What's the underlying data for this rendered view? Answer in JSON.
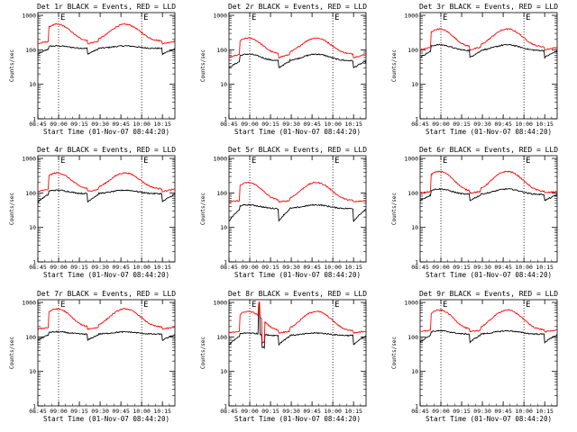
{
  "figure": {
    "background": "#ffffff",
    "axis_color": "#000000"
  },
  "chart_data": [
    {
      "type": "line",
      "title": "Det 1r BLACK = Events, RED = LLD",
      "xlabel": "Start Time (01-Nov-07 08:44:20)",
      "ylabel": "Counts/sec",
      "yscale": "log",
      "ylim": [
        1,
        1200
      ],
      "xlim": [
        "08:45",
        "10:24"
      ],
      "x_tick_labels": [
        "08:45",
        "09:00",
        "09:15",
        "09:30",
        "09:45",
        "10:00",
        "10:15"
      ],
      "y_tick_labels": [
        "1",
        "10",
        "100",
        "1000"
      ],
      "marker_lines": [
        "09:00",
        "10:00"
      ],
      "marker_label": "E",
      "series": [
        {
          "name": "Events",
          "color": "#000000",
          "peak": 130,
          "base": 110,
          "drop": 75
        },
        {
          "name": "LLD",
          "color": "#ff0000",
          "peak": 550,
          "base": 180,
          "drop": 150
        }
      ]
    },
    {
      "type": "line",
      "title": "Det 2r BLACK = Events, RED = LLD",
      "xlabel": "Start Time (01-Nov-07 08:44:20)",
      "ylabel": "Counts/sec",
      "yscale": "log",
      "ylim": [
        1,
        1200
      ],
      "xlim": [
        "08:45",
        "10:24"
      ],
      "x_tick_labels": [
        "08:45",
        "09:00",
        "09:15",
        "09:30",
        "09:45",
        "10:00",
        "10:15"
      ],
      "y_tick_labels": [
        "1",
        "10",
        "100",
        "1000"
      ],
      "marker_lines": [
        "09:00",
        "10:00"
      ],
      "marker_label": "E",
      "series": [
        {
          "name": "Events",
          "color": "#000000",
          "peak": 75,
          "base": 48,
          "drop": 30
        },
        {
          "name": "LLD",
          "color": "#ff0000",
          "peak": 220,
          "base": 75,
          "drop": 60
        }
      ]
    },
    {
      "type": "line",
      "title": "Det 3r BLACK = Events, RED = LLD",
      "xlabel": "Start Time (01-Nov-07 08:44:20)",
      "ylabel": "Counts/sec",
      "yscale": "log",
      "ylim": [
        1,
        1200
      ],
      "xlim": [
        "08:45",
        "10:24"
      ],
      "x_tick_labels": [
        "08:45",
        "09:00",
        "09:15",
        "09:30",
        "09:45",
        "10:00",
        "10:15"
      ],
      "y_tick_labels": [
        "1",
        "10",
        "100",
        "1000"
      ],
      "marker_lines": [
        "09:00",
        "10:00"
      ],
      "marker_label": "E",
      "series": [
        {
          "name": "Events",
          "color": "#000000",
          "peak": 140,
          "base": 95,
          "drop": 60
        },
        {
          "name": "LLD",
          "color": "#ff0000",
          "peak": 400,
          "base": 120,
          "drop": 100
        }
      ]
    },
    {
      "type": "line",
      "title": "Det 4r BLACK = Events, RED = LLD",
      "xlabel": "Start Time (01-Nov-07 08:44:20)",
      "ylabel": "Counts/sec",
      "yscale": "log",
      "ylim": [
        1,
        1200
      ],
      "xlim": [
        "08:45",
        "10:24"
      ],
      "x_tick_labels": [
        "08:45",
        "09:00",
        "09:15",
        "09:30",
        "09:45",
        "10:00",
        "10:15"
      ],
      "y_tick_labels": [
        "1",
        "10",
        "100",
        "1000"
      ],
      "marker_lines": [
        "09:00",
        "10:00"
      ],
      "marker_label": "E",
      "series": [
        {
          "name": "Events",
          "color": "#000000",
          "peak": 120,
          "base": 95,
          "drop": 55
        },
        {
          "name": "LLD",
          "color": "#ff0000",
          "peak": 380,
          "base": 130,
          "drop": 110
        }
      ]
    },
    {
      "type": "line",
      "title": "Det 5r BLACK = Events, RED = LLD",
      "xlabel": "Start Time (01-Nov-07 08:44:20)",
      "ylabel": "Counts/sec",
      "yscale": "log",
      "ylim": [
        1,
        1200
      ],
      "xlim": [
        "08:45",
        "10:24"
      ],
      "x_tick_labels": [
        "08:45",
        "09:00",
        "09:15",
        "09:30",
        "09:45",
        "10:00",
        "10:15"
      ],
      "y_tick_labels": [
        "1",
        "10",
        "100",
        "1000"
      ],
      "marker_lines": [
        "09:00",
        "10:00"
      ],
      "marker_label": "E",
      "series": [
        {
          "name": "Events",
          "color": "#000000",
          "peak": 45,
          "base": 35,
          "drop": 15
        },
        {
          "name": "LLD",
          "color": "#ff0000",
          "peak": 200,
          "base": 60,
          "drop": 55
        }
      ]
    },
    {
      "type": "line",
      "title": "Det 6r BLACK = Events, RED = LLD",
      "xlabel": "Start Time (01-Nov-07 08:44:20)",
      "ylabel": "Counts/sec",
      "yscale": "log",
      "ylim": [
        1,
        1200
      ],
      "xlim": [
        "08:45",
        "10:24"
      ],
      "x_tick_labels": [
        "08:45",
        "09:00",
        "09:15",
        "09:30",
        "09:45",
        "10:00",
        "10:15"
      ],
      "y_tick_labels": [
        "1",
        "10",
        "100",
        "1000"
      ],
      "marker_lines": [
        "09:00",
        "10:00"
      ],
      "marker_label": "E",
      "series": [
        {
          "name": "Events",
          "color": "#000000",
          "peak": 130,
          "base": 90,
          "drop": 60
        },
        {
          "name": "LLD",
          "color": "#ff0000",
          "peak": 420,
          "base": 110,
          "drop": 100
        }
      ]
    },
    {
      "type": "line",
      "title": "Det 7r BLACK = Events, RED = LLD",
      "xlabel": "Start Time (01-Nov-07 08:44:20)",
      "ylabel": "Counts/sec",
      "yscale": "log",
      "ylim": [
        1,
        1200
      ],
      "xlim": [
        "08:45",
        "10:24"
      ],
      "x_tick_labels": [
        "08:45",
        "09:00",
        "09:15",
        "09:30",
        "09:45",
        "10:00",
        "10:15"
      ],
      "y_tick_labels": [
        "1",
        "10",
        "100",
        "1000"
      ],
      "marker_lines": [
        "09:00",
        "10:00"
      ],
      "marker_label": "E",
      "series": [
        {
          "name": "Events",
          "color": "#000000",
          "peak": 140,
          "base": 120,
          "drop": 80
        },
        {
          "name": "LLD",
          "color": "#ff0000",
          "peak": 650,
          "base": 190,
          "drop": 170
        }
      ]
    },
    {
      "type": "line",
      "title": "Det 8r BLACK = Events, RED = LLD",
      "xlabel": "Start Time (01-Nov-07 08:44:20)",
      "ylabel": "Counts/sec",
      "yscale": "log",
      "ylim": [
        1,
        1200
      ],
      "xlim": [
        "08:45",
        "10:24"
      ],
      "x_tick_labels": [
        "08:45",
        "09:00",
        "09:15",
        "09:30",
        "09:45",
        "10:00",
        "10:15"
      ],
      "y_tick_labels": [
        "1",
        "10",
        "100",
        "1000"
      ],
      "marker_lines": [
        "09:00",
        "10:00"
      ],
      "marker_label": "E",
      "series": [
        {
          "name": "Events",
          "color": "#000000",
          "peak": 130,
          "base": 110,
          "drop": 60,
          "spike": 900,
          "dip": 50
        },
        {
          "name": "LLD",
          "color": "#ff0000",
          "peak": 550,
          "base": 150,
          "drop": 130,
          "spike": 1000,
          "dip": 70
        }
      ]
    },
    {
      "type": "line",
      "title": "Det 9r BLACK = Events, RED = LLD",
      "xlabel": "Start Time (01-Nov-07 08:44:20)",
      "ylabel": "Counts/sec",
      "yscale": "log",
      "ylim": [
        1,
        1200
      ],
      "xlim": [
        "08:45",
        "10:24"
      ],
      "x_tick_labels": [
        "08:45",
        "09:00",
        "09:15",
        "09:30",
        "09:45",
        "10:00",
        "10:15"
      ],
      "y_tick_labels": [
        "1",
        "10",
        "100",
        "1000"
      ],
      "marker_lines": [
        "09:00",
        "10:00"
      ],
      "marker_label": "E",
      "series": [
        {
          "name": "Events",
          "color": "#000000",
          "peak": 150,
          "base": 120,
          "drop": 70
        },
        {
          "name": "LLD",
          "color": "#ff0000",
          "peak": 600,
          "base": 160,
          "drop": 140
        }
      ]
    }
  ]
}
